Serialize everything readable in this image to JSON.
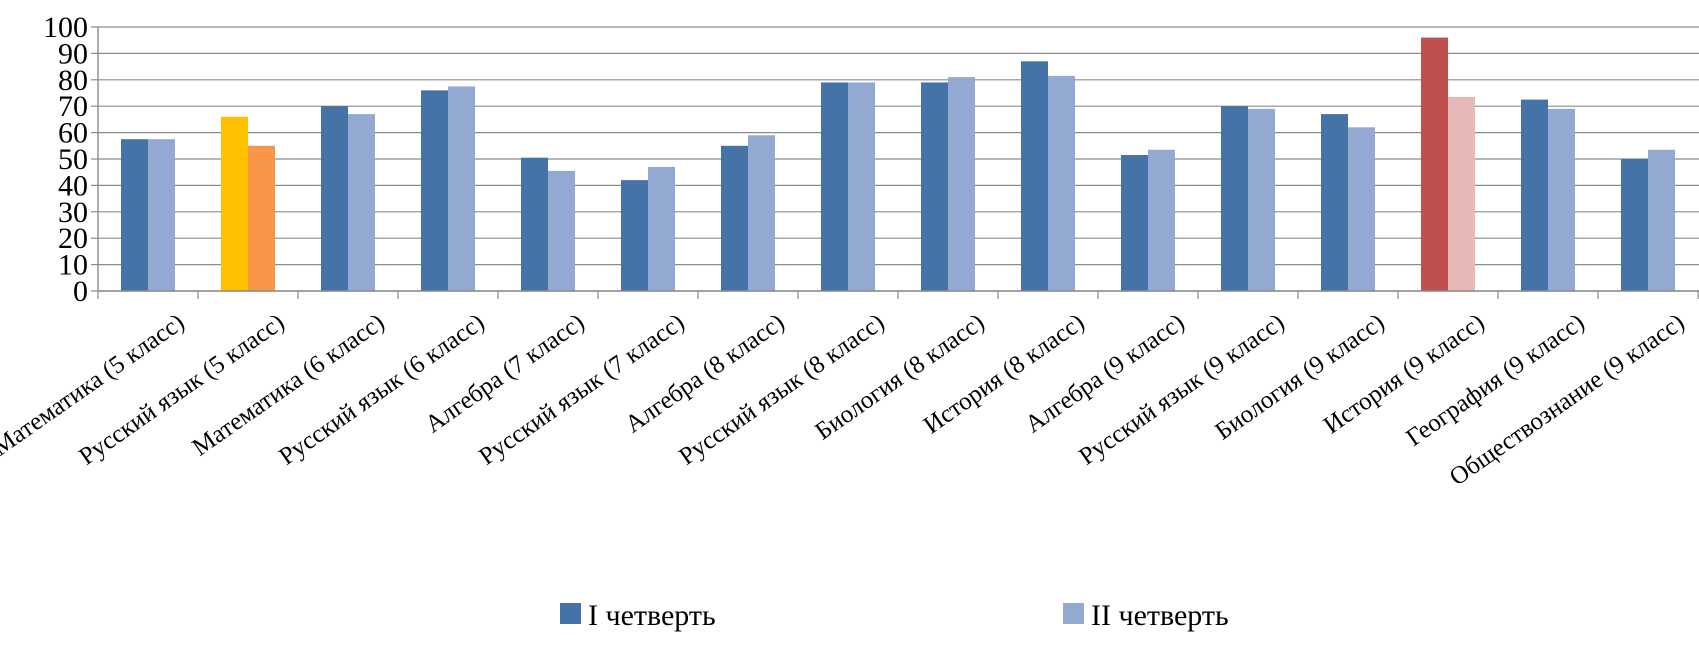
{
  "chart_data": {
    "type": "bar",
    "title": "",
    "xlabel": "",
    "ylabel": "",
    "ylim": [
      0,
      100
    ],
    "yticks": [
      0,
      10,
      20,
      30,
      40,
      50,
      60,
      70,
      80,
      90,
      100
    ],
    "grid": true,
    "legend_position": "bottom",
    "categories": [
      "Математика  (5 класс)",
      "Русский язык (5 класс)",
      "Математика (6 класс)",
      "Русский язык (6 класс)",
      "Алгебра (7 класс)",
      "Русский язык (7 класс)",
      "Алгебра (8 класс)",
      "Русский язык (8 класс)",
      "Биология (8 класс)",
      "История (8 класс)",
      "Алгебра (9 класс)",
      "Русский язык (9 класс)",
      "Биология (9 класс)",
      "История (9 класс)",
      "География (9 класс)",
      "Обществознание (9 класс)"
    ],
    "series": [
      {
        "name": "I четверть",
        "color": "#4572A7",
        "values": [
          57.5,
          66,
          70,
          76,
          50.5,
          42,
          55,
          79,
          79,
          87,
          51.5,
          70,
          67,
          96,
          72.5,
          50
        ]
      },
      {
        "name": "II четверть",
        "color": "#94A9D1",
        "values": [
          57.5,
          55,
          67,
          77.5,
          45.5,
          47,
          59,
          79,
          81,
          81.5,
          53.5,
          69,
          62,
          73.5,
          69,
          53.5
        ]
      }
    ],
    "highlights": [
      {
        "category_index": 1,
        "colors": [
          "#FFC000",
          "#F79646"
        ]
      },
      {
        "category_index": 13,
        "colors": [
          "#C0504D",
          "#E6B9B8"
        ]
      }
    ]
  }
}
